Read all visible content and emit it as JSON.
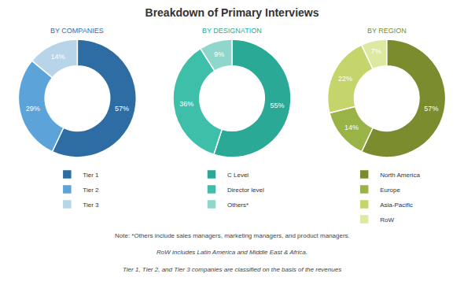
{
  "title": "Breakdown of Primary Interviews",
  "annotations": [
    "Note: *Others include sales managers, marketing managers, and product managers.",
    "RoW includes Latin America and Middle East & Africa.",
    "Tier 1, Tier 2, and Tier 3 companies are classified on the basis of the revenues"
  ],
  "chart_data": [
    {
      "type": "pie",
      "title": "BY COMPANIES",
      "categories": [
        "Tier 1",
        "Tier 2",
        "Tier 3"
      ],
      "values": [
        57,
        29,
        14
      ],
      "value_labels": [
        "57%",
        "29%",
        "14%"
      ],
      "colors": [
        "#2e6da4",
        "#5ba3d9",
        "#b8d4e8"
      ],
      "data_labels": true,
      "legend": "bottom"
    },
    {
      "type": "pie",
      "title": "BY DESIGNATION",
      "categories": [
        "C Level",
        "Director level",
        "Others*"
      ],
      "values": [
        55,
        36,
        9
      ],
      "value_labels": [
        "55%",
        "36%",
        "9%"
      ],
      "colors": [
        "#2aaa96",
        "#3dbfaa",
        "#8fd6cc"
      ],
      "data_labels": true,
      "legend": "bottom"
    },
    {
      "type": "pie",
      "title": "BY REGION",
      "categories": [
        "North America",
        "Europe",
        "Asia-Pacific",
        "RoW"
      ],
      "values": [
        57,
        14,
        22,
        7
      ],
      "value_labels": [
        "57%",
        "14%",
        "22%",
        "7%"
      ],
      "colors": [
        "#7a8c2e",
        "#9ab347",
        "#c5d46b",
        "#dde8a0"
      ],
      "data_labels": true,
      "legend": "bottom"
    }
  ]
}
